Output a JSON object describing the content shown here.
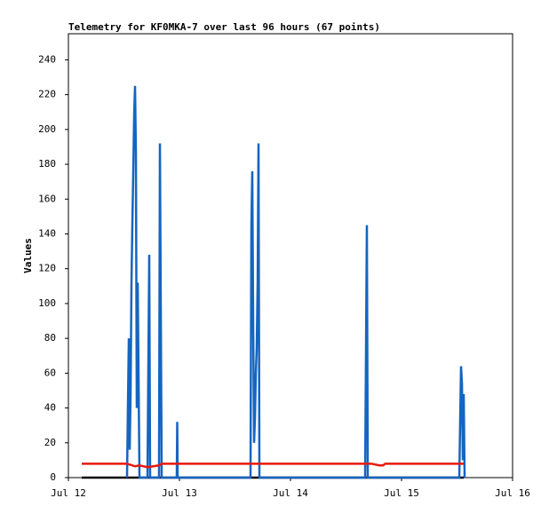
{
  "chart_data": {
    "type": "line",
    "title": "Telemetry for KF0MKA-7 over last 96 hours (67 points)",
    "ylabel": "Values",
    "xlim": [
      0,
      96
    ],
    "xticks": [
      {
        "value": 0,
        "label": "Jul 12"
      },
      {
        "value": 24,
        "label": "Jul 13"
      },
      {
        "value": 48,
        "label": "Jul 14"
      },
      {
        "value": 72,
        "label": "Jul 15"
      },
      {
        "value": 96,
        "label": "Jul 16"
      }
    ],
    "ylim": [
      0,
      255
    ],
    "yticks": [
      0,
      20,
      40,
      60,
      80,
      100,
      120,
      140,
      160,
      180,
      200,
      220,
      240
    ],
    "series": [
      {
        "color": "#000000",
        "x": [
          2.88,
          85.44
        ],
        "values": [
          0,
          0
        ]
      },
      {
        "color": "#1565c0",
        "x": [
          12.67,
          12.86,
          13.06,
          13.25,
          13.44,
          13.63,
          13.82,
          14.02,
          14.21,
          14.4,
          14.59,
          14.78,
          14.98,
          15.17,
          15.36,
          17.09,
          17.28,
          17.47,
          17.66,
          19.58,
          19.78,
          19.97,
          20.16,
          23.42,
          23.52,
          23.62,
          39.36,
          39.55,
          39.74,
          39.94,
          40.13,
          40.32,
          40.51,
          40.7,
          40.9,
          41.09,
          41.28,
          64.13,
          64.32,
          64.51,
          64.7,
          84.48,
          84.67,
          84.86,
          85.06,
          85.25,
          85.44,
          85.63
        ],
        "values": [
          0,
          40,
          80,
          16,
          48,
          112,
          145,
          176,
          208,
          225,
          187,
          40,
          112,
          56,
          0,
          0,
          64,
          128,
          0,
          0,
          192,
          96,
          0,
          0,
          32,
          0,
          0,
          145,
          176,
          88,
          20,
          34,
          60,
          74,
          112,
          192,
          0,
          0,
          72,
          145,
          0,
          0,
          32,
          64,
          54,
          10,
          48,
          0
        ]
      },
      {
        "color": "#e8190c",
        "x": [
          2.88,
          12.67,
          14.4,
          15.36,
          17.09,
          19.58,
          20.16,
          65.5,
          67.2,
          68,
          68.5,
          85.44
        ],
        "values": [
          8,
          8,
          6.5,
          7,
          6,
          7,
          8,
          8,
          7,
          7,
          8,
          8
        ]
      }
    ]
  }
}
